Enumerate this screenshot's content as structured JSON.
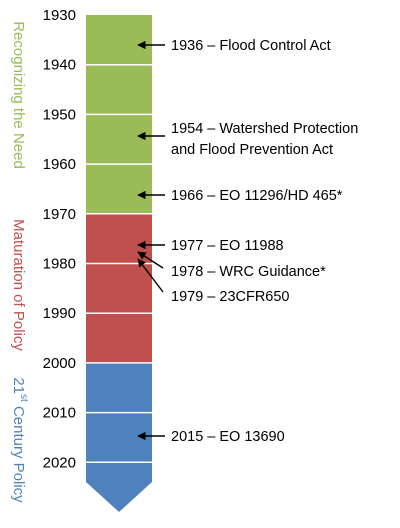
{
  "timeline": {
    "years": [
      1930,
      1940,
      1950,
      1960,
      1970,
      1980,
      1990,
      2000,
      2010,
      2020
    ],
    "phases": [
      {
        "label": "Recognizing the Need"
      },
      {
        "label": "Maturation of Policy"
      },
      {
        "label_parts": [
          "21",
          "st",
          " Century Policy"
        ]
      }
    ],
    "events": [
      {
        "lines": [
          "1936 – Flood Control Act"
        ]
      },
      {
        "lines": [
          "1954 – Watershed Protection",
          "and Flood Prevention Act"
        ]
      },
      {
        "lines": [
          "1966 – EO 11296/HD 465*"
        ]
      },
      {
        "lines": [
          "1977 – EO 11988"
        ]
      },
      {
        "lines": [
          "1978 – WRC Guidance*"
        ]
      },
      {
        "lines": [
          "1979 – 23CFR650"
        ]
      },
      {
        "lines": [
          "2015 – EO 13690"
        ]
      }
    ]
  }
}
